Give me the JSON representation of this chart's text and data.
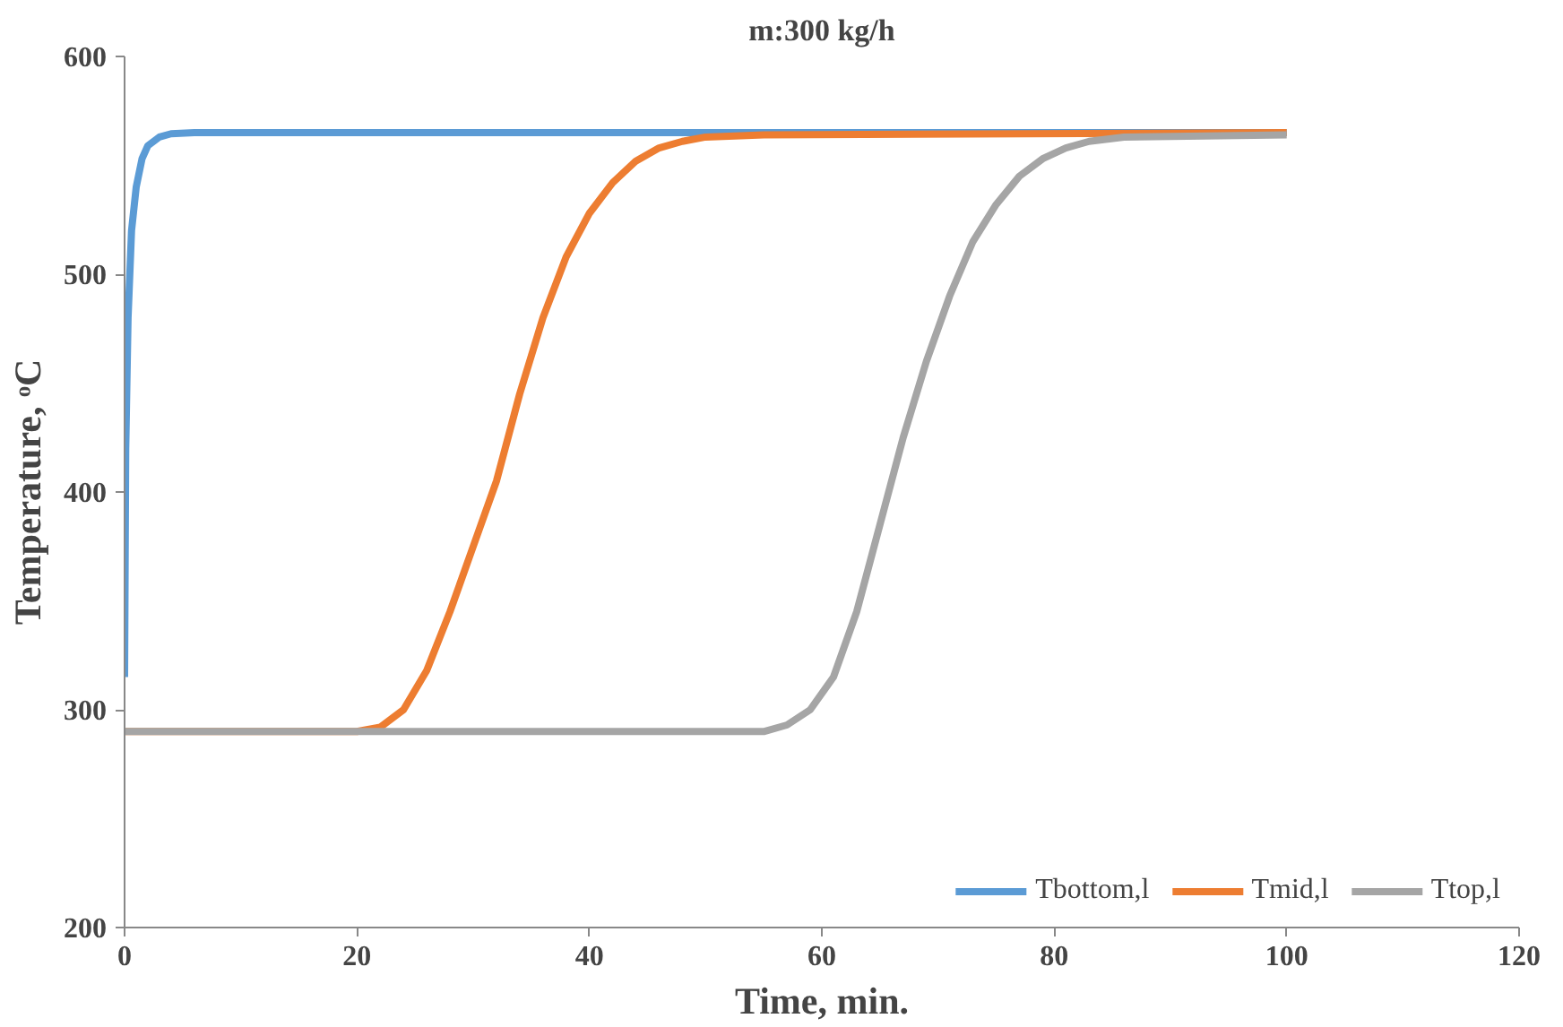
{
  "chart_data": {
    "type": "line",
    "title": "m:300 kg/h",
    "xlabel": "Time, min.",
    "ylabel": "Temperature, ᵒC",
    "xlim": [
      0,
      120
    ],
    "xticks": [
      0,
      20,
      40,
      60,
      80,
      100,
      120
    ],
    "ylim": [
      200,
      600
    ],
    "yticks": [
      200,
      300,
      400,
      500,
      600
    ],
    "grid": false,
    "legend": "bottom right",
    "marker": "none",
    "line_style": "solid",
    "series": [
      {
        "name": "Tbottom,l",
        "color": "#5b9bd5",
        "x": [
          0,
          0.1,
          0.3,
          0.6,
          1,
          1.5,
          2,
          3,
          4,
          6,
          100
        ],
        "values": [
          315,
          420,
          480,
          520,
          540,
          553,
          559,
          563,
          564.5,
          565,
          565
        ]
      },
      {
        "name": "Tmid,l",
        "color": "#ed7d31",
        "x": [
          0,
          20,
          22,
          24,
          26,
          28,
          30,
          32,
          34,
          36,
          38,
          40,
          42,
          44,
          46,
          48,
          50,
          55,
          100
        ],
        "values": [
          290,
          290,
          292,
          300,
          318,
          345,
          375,
          405,
          445,
          480,
          508,
          528,
          542,
          552,
          558,
          561,
          563,
          564,
          565
        ]
      },
      {
        "name": "Ttop,l",
        "color": "#a5a5a5",
        "x": [
          0,
          55,
          57,
          59,
          61,
          63,
          65,
          67,
          69,
          71,
          73,
          75,
          77,
          79,
          81,
          83,
          86,
          100
        ],
        "values": [
          290,
          290,
          293,
          300,
          315,
          345,
          385,
          425,
          460,
          490,
          515,
          532,
          545,
          553,
          558,
          561,
          563,
          564
        ]
      }
    ]
  }
}
